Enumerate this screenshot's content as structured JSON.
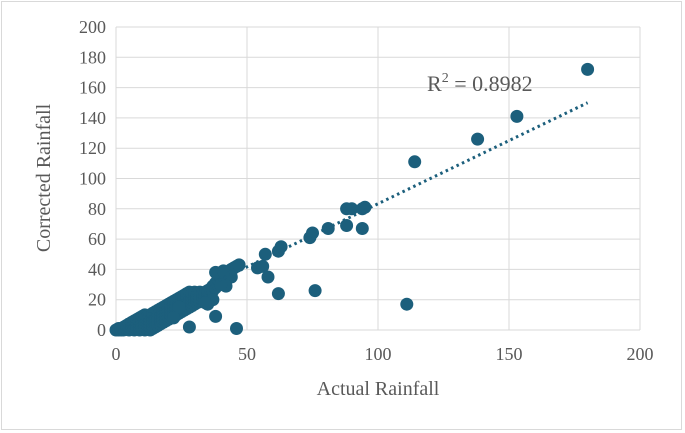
{
  "chart_data": {
    "type": "scatter",
    "title": "",
    "xlabel": "Actual Rainfall",
    "ylabel": "Corrected Rainfall",
    "xlim": [
      0,
      200
    ],
    "ylim": [
      0,
      200
    ],
    "xticks": [
      "0",
      "50",
      "100",
      "150",
      "200"
    ],
    "yticks": [
      "0",
      "20",
      "40",
      "60",
      "80",
      "100",
      "120",
      "140",
      "160",
      "180",
      "200"
    ],
    "grid": "vertical and horizontal",
    "legend": "none",
    "colors": {
      "marker": "#1c5f7c",
      "trendline": "#1c5f7c",
      "grid": "#d9d9d9",
      "text": "#595959"
    },
    "trendline": {
      "type": "linear",
      "x": [
        0,
        180
      ],
      "y": [
        0,
        150
      ],
      "style": "dotted"
    },
    "annotation": {
      "prefix": "R",
      "superscript": "2",
      "suffix": " = 0.8982"
    },
    "points": [
      [
        0,
        0
      ],
      [
        1,
        0
      ],
      [
        1,
        1
      ],
      [
        2,
        0
      ],
      [
        2,
        1
      ],
      [
        3,
        0
      ],
      [
        3,
        2
      ],
      [
        4,
        1
      ],
      [
        4,
        3
      ],
      [
        5,
        0
      ],
      [
        5,
        2
      ],
      [
        5,
        4
      ],
      [
        6,
        1
      ],
      [
        6,
        3
      ],
      [
        6,
        5
      ],
      [
        7,
        0
      ],
      [
        7,
        2
      ],
      [
        7,
        4
      ],
      [
        7,
        6
      ],
      [
        8,
        1
      ],
      [
        8,
        3
      ],
      [
        8,
        5
      ],
      [
        8,
        7
      ],
      [
        9,
        0
      ],
      [
        9,
        2
      ],
      [
        9,
        4
      ],
      [
        9,
        6
      ],
      [
        9,
        8
      ],
      [
        10,
        1
      ],
      [
        10,
        3
      ],
      [
        10,
        5
      ],
      [
        10,
        7
      ],
      [
        10,
        9
      ],
      [
        11,
        0
      ],
      [
        11,
        2
      ],
      [
        11,
        4
      ],
      [
        11,
        6
      ],
      [
        11,
        8
      ],
      [
        11,
        10
      ],
      [
        12,
        1
      ],
      [
        12,
        3
      ],
      [
        12,
        5
      ],
      [
        12,
        7
      ],
      [
        12,
        9
      ],
      [
        13,
        0
      ],
      [
        13,
        2
      ],
      [
        13,
        4
      ],
      [
        13,
        6
      ],
      [
        13,
        8
      ],
      [
        13,
        10
      ],
      [
        14,
        1
      ],
      [
        14,
        3
      ],
      [
        14,
        5
      ],
      [
        14,
        7
      ],
      [
        14,
        9
      ],
      [
        14,
        11
      ],
      [
        15,
        2
      ],
      [
        15,
        4
      ],
      [
        15,
        6
      ],
      [
        15,
        8
      ],
      [
        15,
        10
      ],
      [
        15,
        12
      ],
      [
        16,
        3
      ],
      [
        16,
        5
      ],
      [
        16,
        7
      ],
      [
        16,
        9
      ],
      [
        16,
        11
      ],
      [
        16,
        13
      ],
      [
        17,
        4
      ],
      [
        17,
        6
      ],
      [
        17,
        8
      ],
      [
        17,
        10
      ],
      [
        17,
        12
      ],
      [
        17,
        14
      ],
      [
        18,
        5
      ],
      [
        18,
        7
      ],
      [
        18,
        9
      ],
      [
        18,
        11
      ],
      [
        18,
        13
      ],
      [
        18,
        15
      ],
      [
        19,
        6
      ],
      [
        19,
        8
      ],
      [
        19,
        10
      ],
      [
        19,
        12
      ],
      [
        19,
        14
      ],
      [
        19,
        16
      ],
      [
        20,
        7
      ],
      [
        20,
        9
      ],
      [
        20,
        11
      ],
      [
        20,
        13
      ],
      [
        20,
        15
      ],
      [
        20,
        17
      ],
      [
        21,
        8
      ],
      [
        21,
        10
      ],
      [
        21,
        12
      ],
      [
        21,
        14
      ],
      [
        21,
        16
      ],
      [
        21,
        18
      ],
      [
        22,
        9
      ],
      [
        22,
        11
      ],
      [
        22,
        13
      ],
      [
        22,
        15
      ],
      [
        22,
        17
      ],
      [
        22,
        19
      ],
      [
        23,
        10
      ],
      [
        23,
        12
      ],
      [
        23,
        14
      ],
      [
        23,
        16
      ],
      [
        23,
        18
      ],
      [
        23,
        20
      ],
      [
        24,
        11
      ],
      [
        24,
        13
      ],
      [
        24,
        15
      ],
      [
        24,
        17
      ],
      [
        24,
        19
      ],
      [
        24,
        21
      ],
      [
        25,
        12
      ],
      [
        25,
        14
      ],
      [
        25,
        16
      ],
      [
        25,
        18
      ],
      [
        25,
        20
      ],
      [
        25,
        22
      ],
      [
        26,
        13
      ],
      [
        26,
        15
      ],
      [
        26,
        17
      ],
      [
        26,
        19
      ],
      [
        26,
        21
      ],
      [
        26,
        23
      ],
      [
        27,
        14
      ],
      [
        27,
        16
      ],
      [
        27,
        18
      ],
      [
        27,
        20
      ],
      [
        27,
        22
      ],
      [
        27,
        24
      ],
      [
        28,
        15
      ],
      [
        28,
        17
      ],
      [
        28,
        19
      ],
      [
        28,
        21
      ],
      [
        28,
        23
      ],
      [
        28,
        25
      ],
      [
        29,
        16
      ],
      [
        29,
        18
      ],
      [
        29,
        20
      ],
      [
        29,
        22
      ],
      [
        29,
        24
      ],
      [
        30,
        17
      ],
      [
        30,
        19
      ],
      [
        30,
        21
      ],
      [
        30,
        23
      ],
      [
        30,
        25
      ],
      [
        31,
        18
      ],
      [
        31,
        20
      ],
      [
        31,
        22
      ],
      [
        31,
        24
      ],
      [
        32,
        19
      ],
      [
        32,
        21
      ],
      [
        32,
        23
      ],
      [
        32,
        25
      ],
      [
        33,
        20
      ],
      [
        33,
        22
      ],
      [
        33,
        24
      ],
      [
        34,
        21
      ],
      [
        34,
        23
      ],
      [
        34,
        25
      ],
      [
        35,
        22
      ],
      [
        35,
        24
      ],
      [
        35,
        26
      ],
      [
        36,
        24
      ],
      [
        36,
        27
      ],
      [
        37,
        26
      ],
      [
        37,
        29
      ],
      [
        38,
        28
      ],
      [
        38,
        31
      ],
      [
        39,
        30
      ],
      [
        39,
        33
      ],
      [
        40,
        32
      ],
      [
        40,
        35
      ],
      [
        41,
        34
      ],
      [
        41,
        37
      ],
      [
        42,
        36
      ],
      [
        43,
        38
      ],
      [
        44,
        40
      ],
      [
        45,
        41
      ],
      [
        46,
        42
      ],
      [
        38,
        38
      ],
      [
        41,
        39
      ],
      [
        47,
        43
      ],
      [
        44,
        35
      ],
      [
        42,
        29
      ],
      [
        40,
        30
      ],
      [
        37,
        20
      ],
      [
        35,
        17
      ],
      [
        34,
        18
      ],
      [
        24,
        15
      ],
      [
        22,
        8
      ],
      [
        28,
        2
      ],
      [
        38,
        9
      ],
      [
        46,
        1
      ],
      [
        54,
        41
      ],
      [
        56,
        42
      ],
      [
        57,
        50
      ],
      [
        58,
        35
      ],
      [
        62,
        52
      ],
      [
        63,
        55
      ],
      [
        62,
        24
      ],
      [
        74,
        61
      ],
      [
        75,
        64
      ],
      [
        76,
        26
      ],
      [
        81,
        67
      ],
      [
        88,
        69
      ],
      [
        88,
        80
      ],
      [
        90,
        80
      ],
      [
        94,
        80
      ],
      [
        95,
        81
      ],
      [
        94,
        67
      ],
      [
        111,
        17
      ],
      [
        114,
        111
      ],
      [
        138,
        126
      ],
      [
        153,
        141
      ],
      [
        180,
        172
      ]
    ]
  }
}
